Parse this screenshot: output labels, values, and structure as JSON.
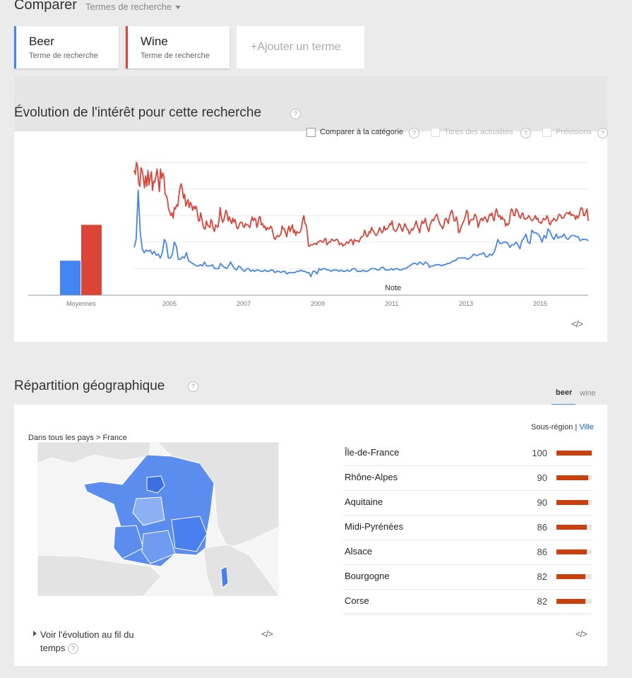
{
  "header": {
    "title": "Comparer",
    "dropdown_label": "Termes de recherche"
  },
  "terms": [
    {
      "name": "Beer",
      "subtitle": "Terme de recherche",
      "color": "#4285f4"
    },
    {
      "name": "Wine",
      "subtitle": "Terme de recherche",
      "color": "#db4437"
    }
  ],
  "add_term_label": "+Ajouter un terme",
  "interest": {
    "title": "Évolution de l'intérêt pour cette recherche",
    "help": "?",
    "options": [
      {
        "label": "Comparer à la catégorie",
        "enabled": true
      },
      {
        "label": "Titres des actualités",
        "enabled": false
      },
      {
        "label": "Prévisions",
        "enabled": false
      }
    ],
    "note_label": "Note",
    "embed_label": "</>"
  },
  "chart_data": {
    "type": "line",
    "x_ticks": [
      "2005",
      "2007",
      "2009",
      "2011",
      "2013",
      "2015"
    ],
    "averages": {
      "label": "Moyennes",
      "values": [
        {
          "term": "Beer",
          "value": 26
        },
        {
          "term": "Wine",
          "value": 53
        }
      ]
    },
    "ylim": [
      0,
      100
    ],
    "grid": true,
    "series": [
      {
        "name": "Beer",
        "color": "#4285f4",
        "values": [
          36,
          42,
          79,
          48,
          35,
          32,
          34,
          33,
          34,
          31,
          33,
          30,
          31,
          28,
          32,
          42,
          39,
          28,
          28,
          31,
          40,
          37,
          27,
          27,
          29,
          28,
          32,
          26,
          25,
          24,
          23,
          22,
          22,
          23,
          22,
          25,
          22,
          22,
          22,
          23,
          20,
          20,
          20,
          24,
          22,
          21,
          20,
          22,
          25,
          22,
          20,
          19,
          22,
          21,
          19,
          18,
          20,
          20,
          18,
          19,
          18,
          19,
          19,
          18,
          18,
          19,
          18,
          18,
          19,
          19,
          17,
          18,
          18,
          17,
          18,
          18,
          16,
          17,
          17,
          17,
          17,
          18,
          18,
          19,
          18,
          18,
          17,
          17,
          14,
          18,
          18,
          16,
          20,
          19,
          20,
          20,
          19,
          19,
          18,
          19,
          19,
          19,
          18,
          19,
          18,
          18,
          19,
          18,
          19,
          20,
          20,
          18,
          18,
          18,
          19,
          18,
          18,
          19,
          20,
          20,
          20,
          19,
          19,
          21,
          21,
          19,
          19,
          19,
          20,
          19,
          20,
          20,
          19,
          19,
          20,
          20,
          21,
          22,
          23,
          24,
          24,
          23,
          25,
          24,
          23,
          25,
          24,
          21,
          22,
          22,
          23,
          23,
          23,
          22,
          23,
          23,
          24,
          24,
          25,
          26,
          26,
          28,
          28,
          28,
          28,
          28,
          27,
          28,
          29,
          31,
          30,
          30,
          31,
          31,
          32,
          29,
          29,
          31,
          30,
          32,
          36,
          42,
          39,
          39,
          40,
          40,
          39,
          36,
          38,
          38,
          40,
          38,
          35,
          41,
          43,
          46,
          40,
          39,
          49,
          47,
          47,
          46,
          44,
          40,
          45,
          43,
          50,
          48,
          44,
          42,
          46,
          43,
          44,
          44,
          46,
          43,
          42,
          44,
          45,
          45,
          44,
          44,
          41,
          42,
          42,
          42,
          41
        ],
        "values_note": "monthly approximation"
      },
      {
        "name": "Wine",
        "color": "#db4437",
        "values": [
          94,
          91,
          100,
          97,
          84,
          82,
          96,
          94,
          88,
          81,
          90,
          82,
          94,
          83,
          89,
          93,
          79,
          86,
          85,
          90,
          95,
          87,
          78,
          95,
          88,
          92,
          89,
          76,
          75,
          72,
          65,
          63,
          60,
          62,
          58,
          66,
          65,
          68,
          67,
          75,
          81,
          84,
          80,
          73,
          76,
          67,
          70,
          72,
          66,
          70,
          68,
          64,
          67,
          65,
          67,
          63,
          56,
          56,
          62,
          58,
          53,
          50,
          50,
          56,
          53,
          52,
          51,
          57,
          55,
          50,
          48,
          53,
          52,
          51,
          57,
          66,
          59,
          55,
          56,
          60,
          64,
          62,
          56,
          59,
          56,
          54,
          58,
          55,
          57,
          53,
          50,
          51,
          54,
          55,
          55,
          52,
          51,
          54,
          53,
          53,
          52,
          51,
          56,
          59,
          56,
          58,
          57,
          51,
          54,
          59,
          59,
          53,
          54,
          51,
          52,
          49,
          51,
          50,
          50,
          52,
          51,
          47,
          43,
          42,
          44,
          45,
          44,
          45,
          46,
          52,
          50,
          50,
          47,
          44,
          49,
          52,
          48,
          51,
          53,
          47,
          49,
          45,
          48,
          47,
          47,
          48,
          51,
          57,
          60,
          54,
          53,
          47,
          37,
          37,
          38,
          38,
          38,
          39,
          39,
          38,
          40,
          40,
          41,
          41,
          40,
          40,
          42,
          43,
          38,
          39,
          40,
          40,
          42,
          42,
          41,
          41,
          42,
          42,
          41,
          38,
          39,
          39,
          37,
          38,
          38,
          40,
          40,
          39,
          41,
          42,
          41,
          38,
          42,
          41,
          41,
          41,
          40,
          42,
          44,
          44,
          45,
          49,
          46,
          44,
          45,
          48,
          47,
          51,
          49,
          48,
          46,
          45,
          46,
          48,
          51,
          49,
          47,
          48,
          52,
          49,
          50,
          50,
          52,
          54,
          53,
          56,
          50,
          49,
          48,
          49,
          51,
          54,
          53,
          50,
          48,
          51,
          54,
          52,
          50,
          49,
          46,
          48,
          50,
          49,
          51,
          53,
          56,
          52,
          50,
          47,
          52,
          56,
          54,
          55,
          58,
          53,
          50,
          48,
          53,
          55,
          57,
          56,
          58,
          60,
          61,
          58,
          55,
          53,
          52,
          50,
          52,
          57,
          58,
          56,
          54,
          59,
          62,
          64,
          61,
          56,
          56,
          59,
          55,
          47,
          48,
          51,
          53,
          55,
          57,
          60,
          64,
          62,
          53,
          56,
          57,
          57,
          57,
          61,
          60,
          57,
          51,
          54,
          57,
          58,
          56,
          58,
          59,
          57,
          55,
          58,
          61,
          60,
          62,
          58,
          56,
          63,
          65,
          61,
          59,
          60,
          57,
          59,
          57,
          57,
          52,
          54,
          53,
          54,
          61,
          65,
          64,
          60,
          60,
          65,
          64,
          62,
          59,
          58,
          61,
          62,
          58,
          57,
          58,
          58,
          60,
          59,
          57,
          56,
          57,
          58,
          60,
          57,
          58,
          55,
          55,
          54,
          56,
          58,
          57,
          57,
          60,
          58,
          54,
          53,
          56,
          56,
          58,
          57,
          56,
          57,
          60,
          61,
          60,
          58,
          58,
          59,
          61,
          62,
          62,
          61,
          63,
          60,
          61,
          60,
          60,
          57,
          60,
          58,
          60,
          64,
          66,
          65,
          60,
          60,
          63,
          65,
          56
        ]
      }
    ]
  },
  "geo": {
    "title": "Répartition géographique",
    "help": "?",
    "tabs": [
      {
        "label": "beer",
        "active": true
      },
      {
        "label": "wine",
        "active": false
      }
    ],
    "breadcrumb": {
      "world": "Dans tous les pays",
      "sep": ">",
      "country": "France"
    },
    "view_toggle": {
      "sub_region": "Sous-région",
      "city": "Ville"
    },
    "regions": [
      {
        "name": "Île-de-France",
        "value": 100
      },
      {
        "name": "Rhône-Alpes",
        "value": 90
      },
      {
        "name": "Aquitaine",
        "value": 90
      },
      {
        "name": "Midi-Pyrénées",
        "value": 86
      },
      {
        "name": "Alsace",
        "value": 86
      },
      {
        "name": "Bourgogne",
        "value": 82
      },
      {
        "name": "Corse",
        "value": 82
      }
    ],
    "time_link_line1": "Voir l'évolution au fil du",
    "time_link_line2": "temps",
    "embed_label": "</>",
    "map_colors": {
      "land": "#e3e3e3",
      "sea": "#f5f5f5",
      "fill": "#5b8def",
      "dark": "#3a6fe0",
      "light": "#8cb0f4"
    }
  }
}
